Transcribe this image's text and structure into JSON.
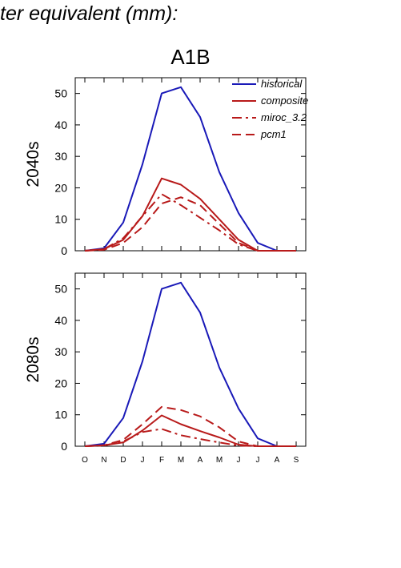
{
  "page": {
    "title": "ter equivalent (mm):",
    "scenario": "A1B"
  },
  "colors": {
    "historical": "#1a1ab8",
    "projection": "#b81a1a"
  },
  "chart_data": [
    {
      "type": "line",
      "panel_label": "2040s",
      "x": [
        "O",
        "N",
        "D",
        "J",
        "F",
        "M",
        "A",
        "M",
        "J",
        "J",
        "A",
        "S"
      ],
      "ylim": [
        0,
        55
      ],
      "yticks": [
        0,
        10,
        20,
        30,
        40,
        50
      ],
      "legend_position": "top-right",
      "series": [
        {
          "name": "historical",
          "color": "#1a1ab8",
          "dash": "solid",
          "values": [
            0,
            0.8,
            9,
            27.5,
            50,
            52,
            42.5,
            25,
            12,
            2.5,
            0,
            0
          ]
        },
        {
          "name": "composite",
          "color": "#b81a1a",
          "dash": "solid",
          "values": [
            0,
            0.5,
            3.5,
            11,
            23,
            21,
            16.5,
            10,
            3.5,
            0,
            0,
            0
          ]
        },
        {
          "name": "miroc_3.2",
          "color": "#b81a1a",
          "dash": "dashdot",
          "values": [
            0,
            0.5,
            4,
            11,
            18,
            14.5,
            10.5,
            6.5,
            2,
            0,
            0,
            0
          ]
        },
        {
          "name": "pcm1",
          "color": "#b81a1a",
          "dash": "dashed",
          "values": [
            0,
            0.3,
            2.5,
            7.5,
            15,
            17,
            14.5,
            8.5,
            2.5,
            0,
            0,
            0
          ]
        }
      ]
    },
    {
      "type": "line",
      "panel_label": "2080s",
      "x": [
        "O",
        "N",
        "D",
        "J",
        "F",
        "M",
        "A",
        "M",
        "J",
        "J",
        "A",
        "S"
      ],
      "ylim": [
        0,
        55
      ],
      "yticks": [
        0,
        10,
        20,
        30,
        40,
        50
      ],
      "series": [
        {
          "name": "historical",
          "color": "#1a1ab8",
          "dash": "solid",
          "values": [
            0,
            0.8,
            9,
            27,
            50,
            52,
            42.5,
            25,
            12,
            2.5,
            0,
            0
          ]
        },
        {
          "name": "composite",
          "color": "#b81a1a",
          "dash": "solid",
          "values": [
            0,
            0.3,
            1.2,
            5,
            9.8,
            7,
            4.8,
            2.8,
            0.5,
            0,
            0,
            0
          ]
        },
        {
          "name": "miroc_3.2",
          "color": "#b81a1a",
          "dash": "dashdot",
          "values": [
            0,
            0.2,
            1.5,
            4.5,
            5.5,
            3.5,
            2.3,
            1.2,
            0.2,
            0,
            0,
            0
          ]
        },
        {
          "name": "pcm1",
          "color": "#b81a1a",
          "dash": "dashed",
          "values": [
            0,
            0.3,
            2,
            7,
            12.5,
            11.5,
            9.5,
            6,
            1.5,
            0,
            0,
            0
          ]
        }
      ]
    }
  ]
}
